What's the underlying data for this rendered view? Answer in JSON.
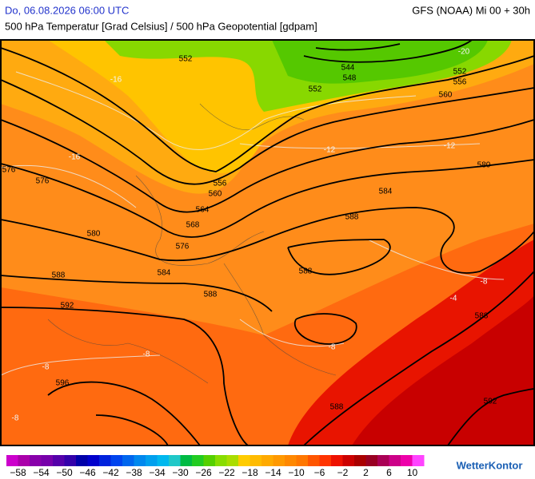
{
  "header": {
    "datetime": "Do, 06.08.2026 06:00 UTC",
    "model": "GFS (NOAA) Mi 00 + 30h",
    "subtitle": "500 hPa Temperatur [Grad Celsius] / 500 hPa Geopotential [gdpam]"
  },
  "map": {
    "height_contour_labels": [
      552,
      544,
      548,
      552,
      552,
      556,
      560,
      556,
      560,
      564,
      568,
      576,
      576,
      576,
      580,
      580,
      584,
      588,
      588,
      584,
      588,
      588,
      592,
      588,
      596,
      588,
      592
    ],
    "temperature_labels": [
      -20,
      -16,
      -16,
      -12,
      -12,
      -8,
      -4,
      -8,
      -8,
      -8,
      -8
    ]
  },
  "legend": {
    "labels": [
      "−58",
      "−54",
      "−50",
      "−46",
      "−42",
      "−38",
      "−34",
      "−30",
      "−26",
      "−22",
      "−18",
      "−14",
      "−10",
      "−6",
      "−2",
      "2",
      "6",
      "10"
    ],
    "colors": [
      "#cc00cc",
      "#aa00aa",
      "#8800aa",
      "#7700aa",
      "#5500aa",
      "#3300aa",
      "#0000aa",
      "#0000cc",
      "#0022dd",
      "#0044ee",
      "#0066ee",
      "#0088ee",
      "#00a0ee",
      "#00b8ee",
      "#20c8c8",
      "#00bb44",
      "#22cc22",
      "#55d000",
      "#88dd00",
      "#aadd00",
      "#ffcc00",
      "#ffbb00",
      "#ffaa00",
      "#ff9900",
      "#ff8800",
      "#ff7700",
      "#ff5500",
      "#ff3300",
      "#ee1100",
      "#cc0000",
      "#aa0000",
      "#990022",
      "#aa0055",
      "#cc0088",
      "#ee00aa",
      "#ff44ff"
    ]
  },
  "logo": "WetterKontor"
}
